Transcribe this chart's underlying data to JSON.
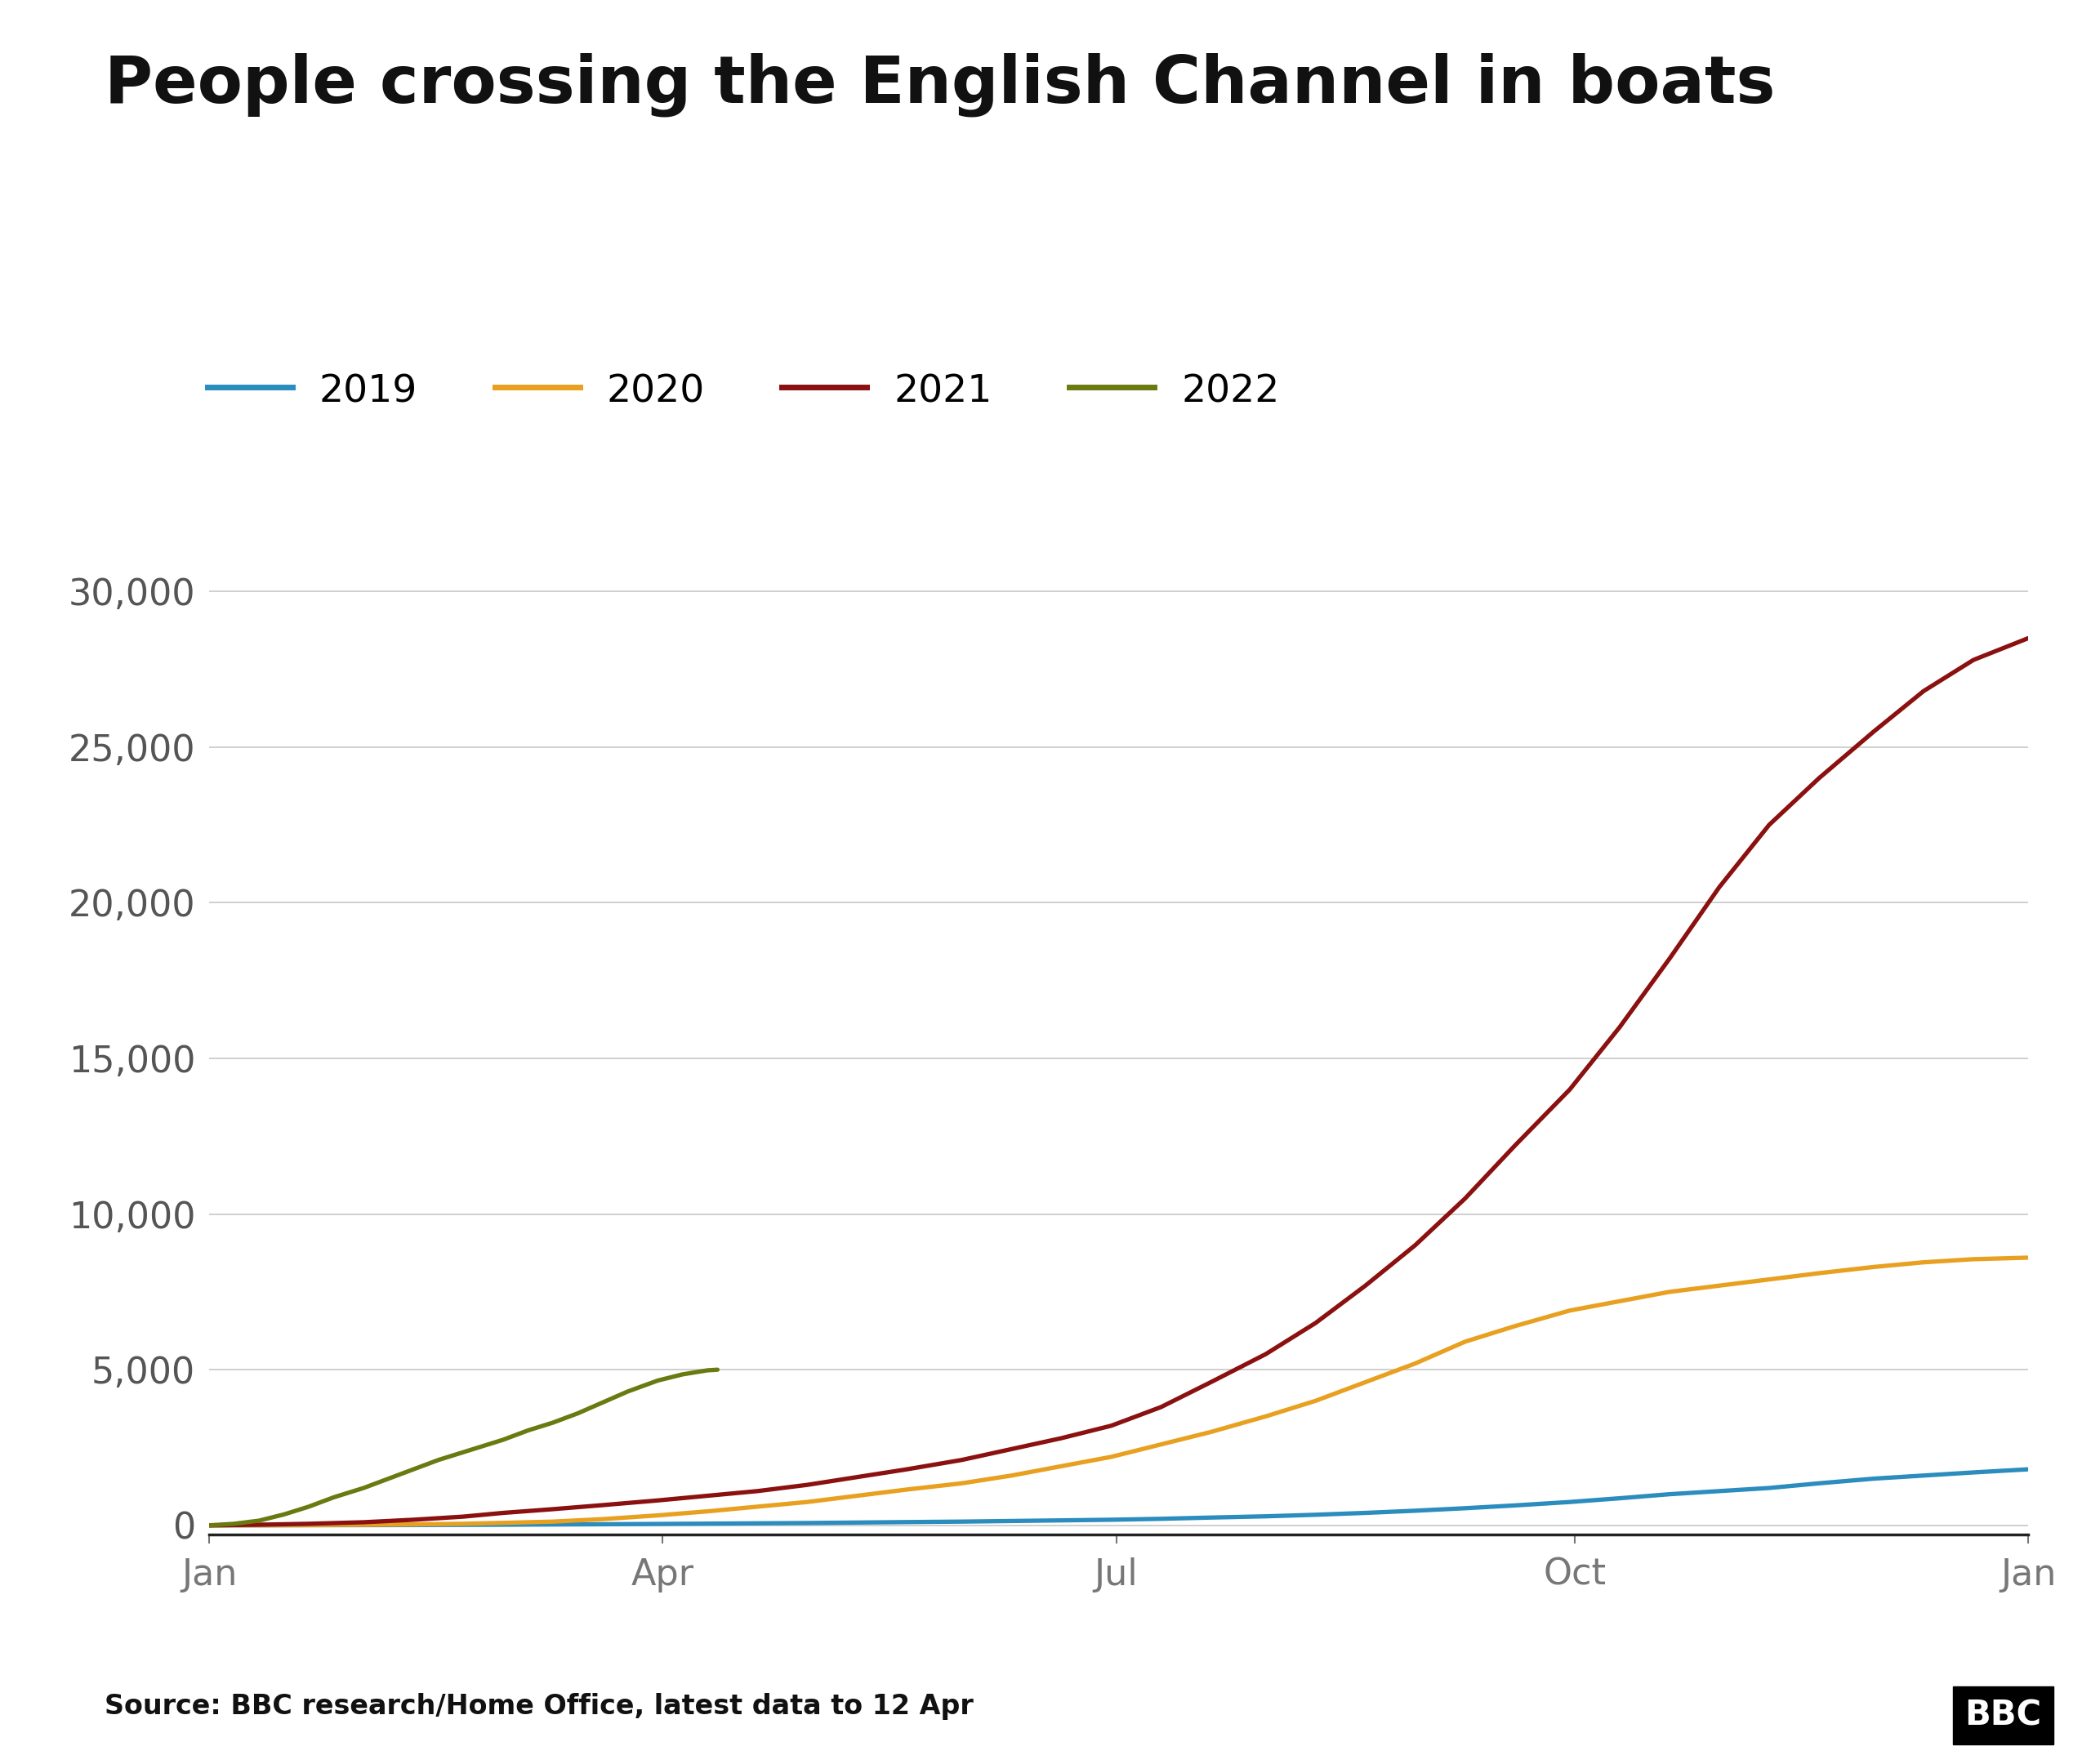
{
  "title": "People crossing the English Channel in boats",
  "source_text": "Source: BBC research/Home Office, latest data to 12 Apr",
  "bbc_logo": "BBC",
  "colors": {
    "2019": "#2b8cbe",
    "2020": "#e8a020",
    "2021": "#8b1010",
    "2022": "#6b7a10"
  },
  "legend_labels": [
    "2019",
    "2020",
    "2021",
    "2022"
  ],
  "x_tick_labels": [
    "Jan",
    "Apr",
    "Jul",
    "Oct",
    "Jan"
  ],
  "x_tick_positions": [
    0,
    91,
    182,
    274,
    365
  ],
  "ylim": [
    -300,
    32000
  ],
  "yticks": [
    0,
    5000,
    10000,
    15000,
    20000,
    25000,
    30000
  ],
  "background_color": "#ffffff",
  "data_2019": {
    "days": [
      0,
      10,
      20,
      31,
      41,
      51,
      59,
      69,
      79,
      90,
      100,
      110,
      120,
      130,
      140,
      151,
      161,
      171,
      181,
      191,
      201,
      212,
      222,
      232,
      242,
      252,
      262,
      273,
      283,
      293,
      303,
      313,
      323,
      334,
      344,
      354,
      365
    ],
    "values": [
      0,
      2,
      5,
      8,
      10,
      15,
      20,
      28,
      35,
      45,
      55,
      65,
      75,
      90,
      105,
      120,
      140,
      160,
      180,
      210,
      250,
      290,
      340,
      400,
      470,
      550,
      640,
      750,
      870,
      1000,
      1100,
      1200,
      1350,
      1500,
      1600,
      1700,
      1800
    ]
  },
  "data_2020": {
    "days": [
      0,
      10,
      20,
      31,
      41,
      51,
      59,
      69,
      79,
      90,
      100,
      110,
      120,
      130,
      140,
      151,
      161,
      171,
      181,
      191,
      201,
      212,
      222,
      232,
      242,
      252,
      262,
      273,
      283,
      293,
      303,
      313,
      323,
      334,
      344,
      354,
      365
    ],
    "values": [
      0,
      5,
      10,
      20,
      30,
      50,
      80,
      120,
      200,
      320,
      450,
      600,
      750,
      950,
      1150,
      1350,
      1600,
      1900,
      2200,
      2600,
      3000,
      3500,
      4000,
      4600,
      5200,
      5900,
      6400,
      6900,
      7200,
      7500,
      7700,
      7900,
      8100,
      8300,
      8450,
      8550,
      8600
    ]
  },
  "data_2021": {
    "days": [
      0,
      10,
      20,
      31,
      41,
      51,
      59,
      69,
      79,
      90,
      100,
      110,
      120,
      130,
      140,
      151,
      161,
      171,
      181,
      191,
      201,
      212,
      222,
      232,
      242,
      252,
      262,
      273,
      283,
      293,
      303,
      313,
      323,
      334,
      344,
      354,
      365
    ],
    "values": [
      0,
      20,
      50,
      100,
      180,
      280,
      400,
      520,
      650,
      800,
      950,
      1100,
      1300,
      1550,
      1800,
      2100,
      2450,
      2800,
      3200,
      3800,
      4600,
      5500,
      6500,
      7700,
      9000,
      10500,
      12200,
      14000,
      16000,
      18200,
      20500,
      22500,
      24000,
      25500,
      26800,
      27800,
      28500
    ]
  },
  "data_2022": {
    "days": [
      0,
      5,
      10,
      15,
      20,
      25,
      31,
      36,
      41,
      46,
      51,
      56,
      59,
      64,
      69,
      74,
      79,
      84,
      90,
      95,
      100,
      102
    ],
    "values": [
      0,
      50,
      150,
      350,
      600,
      900,
      1200,
      1500,
      1800,
      2100,
      2350,
      2600,
      2750,
      3050,
      3300,
      3600,
      3950,
      4300,
      4650,
      4850,
      4980,
      5000
    ]
  }
}
